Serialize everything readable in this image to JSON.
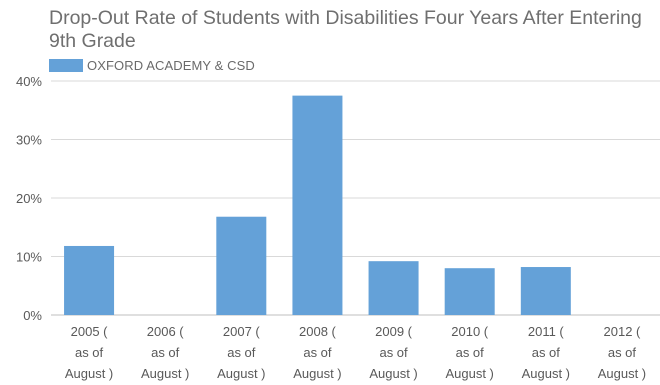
{
  "chart_data": {
    "type": "bar",
    "title": "Drop-Out Rate of Students with Disabilities Four Years After Entering 9th Grade",
    "categories": [
      [
        "2005 (",
        "as of",
        "August )"
      ],
      [
        "2006 (",
        "as of",
        "August )"
      ],
      [
        "2007 (",
        "as of",
        "August )"
      ],
      [
        "2008 (",
        "as of",
        "August )"
      ],
      [
        "2009 (",
        "as of",
        "August )"
      ],
      [
        "2010 (",
        "as of",
        "August )"
      ],
      [
        "2011 (",
        "as of",
        "August )"
      ],
      [
        "2012 (",
        "as of",
        "August )"
      ]
    ],
    "series": [
      {
        "name": "OXFORD ACADEMY & CSD",
        "values": [
          11.8,
          0,
          16.8,
          37.5,
          9.2,
          8.0,
          8.2,
          0
        ],
        "color": "#64a1d8"
      }
    ],
    "ylim": [
      0,
      40
    ],
    "yticks": [
      "0%",
      "10%",
      "20%",
      "30%",
      "40%"
    ],
    "ytick_values": [
      0,
      10,
      20,
      30,
      40
    ],
    "grid": true,
    "legend_position": "top-left"
  },
  "colors": {
    "bar": "#64a1d8",
    "grid": "#d9d9d9",
    "axis": "#bfbfbf",
    "text": "#595959"
  }
}
